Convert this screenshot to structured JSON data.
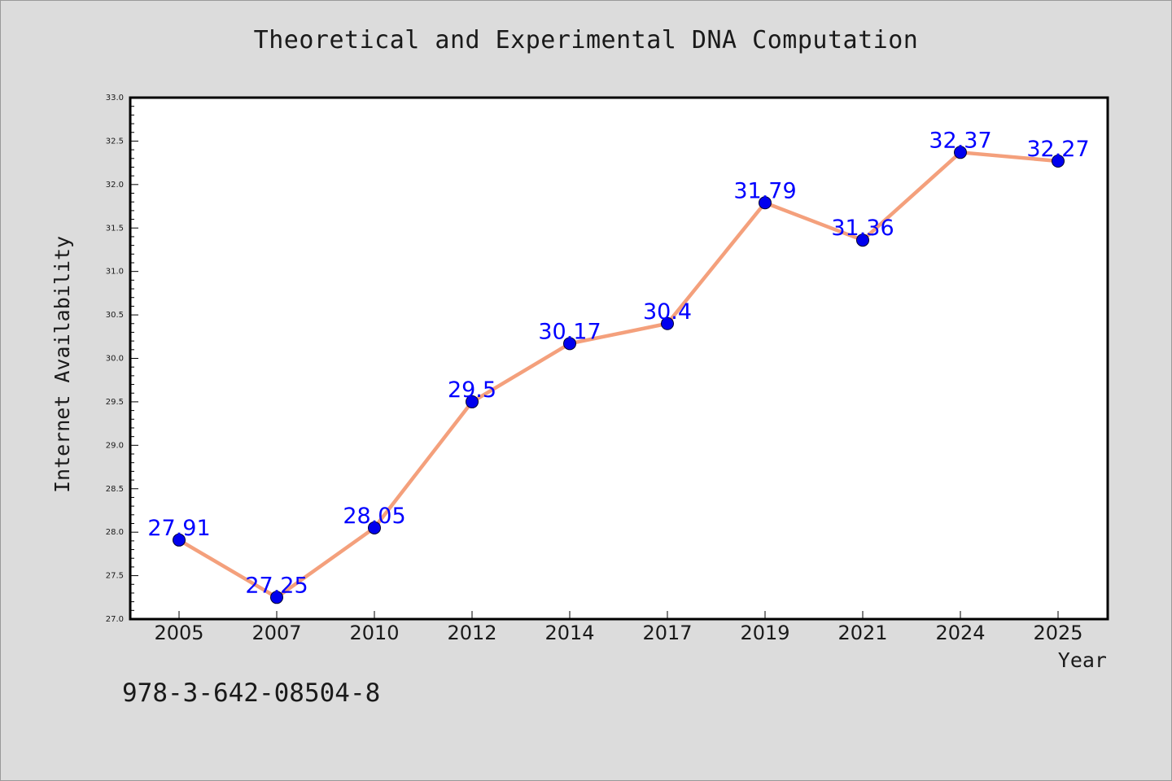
{
  "chart_data": {
    "type": "line",
    "title": "Theoretical and Experimental DNA Computation",
    "xlabel": "Year",
    "ylabel": "Internet Availability",
    "categories": [
      "2005",
      "2007",
      "2010",
      "2012",
      "2014",
      "2017",
      "2019",
      "2021",
      "2024",
      "2025"
    ],
    "series": [
      {
        "values": [
          27.91,
          27.25,
          28.05,
          29.5,
          30.17,
          30.4,
          31.79,
          31.36,
          32.37,
          32.27
        ],
        "data_labels": [
          "27.91",
          "27.25",
          "28.05",
          "29.5",
          "30.17",
          "30.4",
          "31.79",
          "31.36",
          "32.37",
          "32.27"
        ],
        "line_color": "#f4a07c",
        "marker_color": "#0000ee",
        "label_color": "#0000ff"
      }
    ],
    "ylim": [
      27.0,
      33.0
    ],
    "yticks": [
      "27.0",
      "27.5",
      "28.0",
      "28.5",
      "29.0",
      "29.5",
      "30.0",
      "30.5",
      "31.0",
      "31.5",
      "32.0",
      "32.5",
      "33.0"
    ],
    "grid": false,
    "legend": "none"
  },
  "footer": {
    "isbn": "978-3-642-08504-8"
  }
}
